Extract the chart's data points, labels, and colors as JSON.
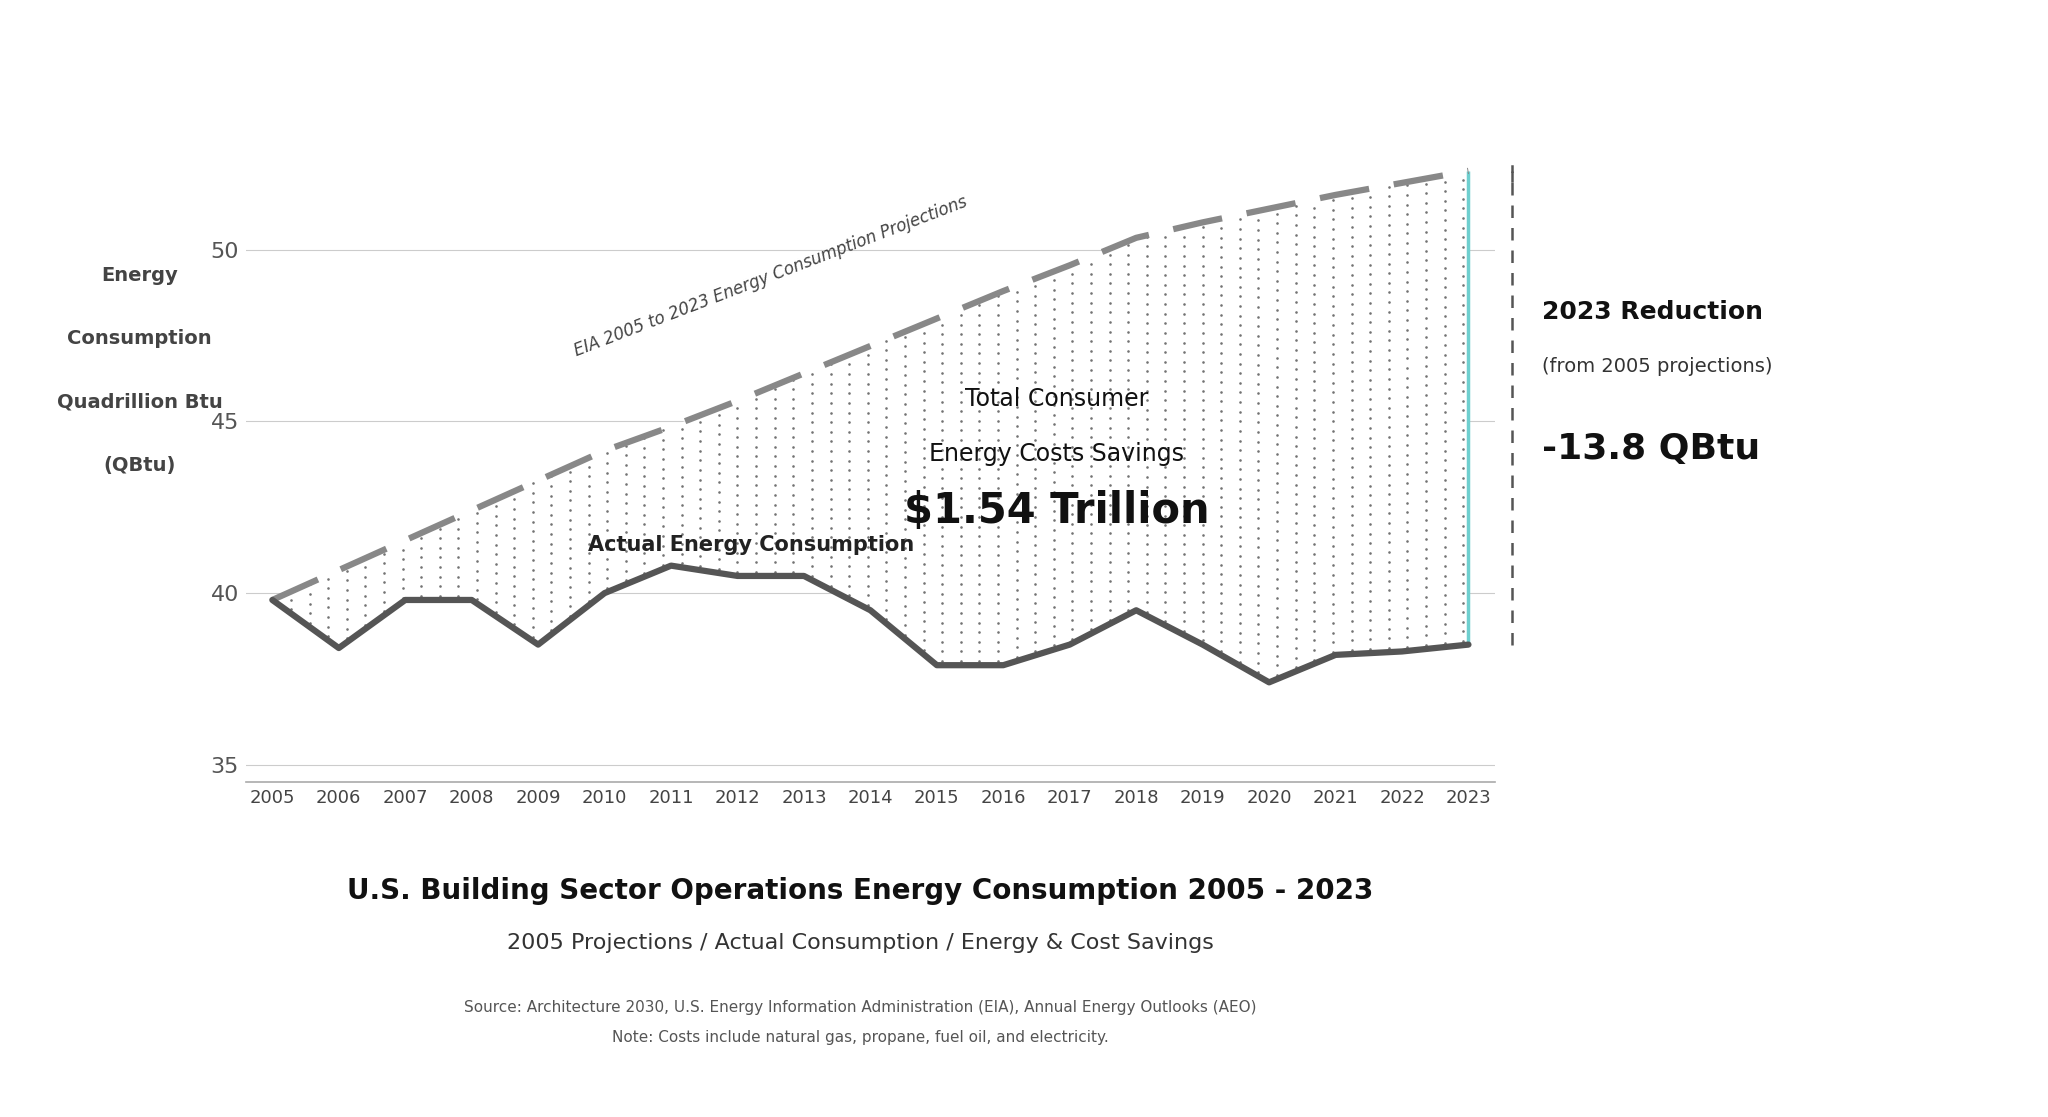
{
  "years": [
    2005,
    2006,
    2007,
    2008,
    2009,
    2010,
    2011,
    2012,
    2013,
    2014,
    2015,
    2016,
    2017,
    2018,
    2019,
    2020,
    2021,
    2022,
    2023
  ],
  "projection": [
    39.8,
    40.67,
    41.54,
    42.41,
    43.28,
    44.15,
    44.85,
    45.6,
    46.4,
    47.2,
    48.0,
    48.8,
    49.55,
    50.35,
    50.8,
    51.2,
    51.6,
    51.95,
    52.3
  ],
  "actual": [
    39.8,
    38.4,
    39.8,
    39.8,
    38.5,
    40.0,
    40.8,
    40.5,
    40.5,
    39.5,
    37.9,
    37.9,
    38.5,
    39.5,
    38.5,
    37.4,
    38.2,
    38.3,
    38.5
  ],
  "bg_color": "#ffffff",
  "projection_color": "#888888",
  "actual_color": "#555555",
  "teal_color": "#6ecfcf",
  "bracket_color": "#555555",
  "dot_color": "#444444",
  "title": "U.S. Building Sector Operations Energy Consumption 2005 - 2023",
  "subtitle": "2005 Projections / Actual Consumption / Energy & Cost Savings",
  "source_line1": "Source: Architecture 2030, U.S. Energy Information Administration (EIA), Annual Energy Outlooks (AEO)",
  "source_line2": "Note: Costs include natural gas, propane, fuel oil, and electricity.",
  "ylabel_line1": "Energy",
  "ylabel_line2": "Consumption",
  "ylabel_line3": "Quadrillion Btu",
  "ylabel_line4": "(QBtu)",
  "yticks": [
    35,
    40,
    45,
    50
  ],
  "ylim": [
    34.5,
    55.0
  ],
  "projection_label": "EIA 2005 to 2023 Energy Consumption Projections",
  "actual_label": "Actual Energy Consumption",
  "savings_line1": "Total Consumer",
  "savings_line2": "Energy Costs Savings",
  "savings_amount": "$1.54 Trillion",
  "reduction_title": "2023 Reduction",
  "reduction_subtitle": "(from 2005 projections)",
  "reduction_value": "-13.8 QBtu"
}
